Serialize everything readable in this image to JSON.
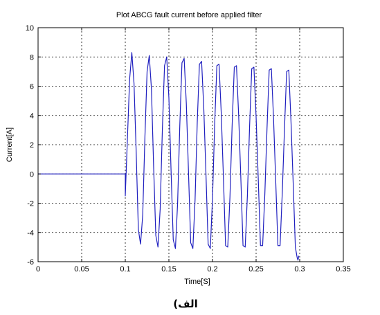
{
  "chart_data": {
    "type": "line",
    "title": "Plot ABCG fault current before applied filter",
    "xlabel": "Time[S]",
    "ylabel": "Current[A]",
    "xlim": [
      0,
      0.35
    ],
    "ylim": [
      -6,
      10
    ],
    "x_ticks": [
      0,
      0.05,
      0.1,
      0.15,
      0.2,
      0.25,
      0.3,
      0.35
    ],
    "x_tick_labels": [
      "0",
      "0.05",
      "0.1",
      "0.15",
      "0.2",
      "0.25",
      "0.3",
      "0.35"
    ],
    "y_ticks": [
      -6,
      -4,
      -2,
      0,
      2,
      4,
      6,
      8,
      10
    ],
    "y_tick_labels": [
      "-6",
      "-4",
      "-2",
      "0",
      "2",
      "4",
      "6",
      "8",
      "10"
    ],
    "grid": true,
    "series": [
      {
        "color": "#1f1fbf",
        "x": [
          0,
          0.1,
          0.1,
          0.105,
          0.1075,
          0.11,
          0.1125,
          0.115,
          0.1175,
          0.12,
          0.1225,
          0.125,
          0.1275,
          0.13,
          0.1325,
          0.135,
          0.1375,
          0.14,
          0.1425,
          0.145,
          0.1475,
          0.15,
          0.1525,
          0.155,
          0.1575,
          0.16,
          0.1625,
          0.165,
          0.1675,
          0.17,
          0.1725,
          0.175,
          0.1775,
          0.18,
          0.1825,
          0.185,
          0.1875,
          0.19,
          0.1925,
          0.195,
          0.1975,
          0.2,
          0.2025,
          0.205,
          0.2075,
          0.21,
          0.2125,
          0.215,
          0.2175,
          0.22,
          0.2225,
          0.225,
          0.2275,
          0.23,
          0.2325,
          0.235,
          0.2375,
          0.24,
          0.2425,
          0.245,
          0.2475,
          0.25,
          0.2525,
          0.255,
          0.2575,
          0.26,
          0.2625,
          0.265,
          0.2675,
          0.27,
          0.2725,
          0.275,
          0.2775,
          0.28,
          0.2825,
          0.285,
          0.2875,
          0.29,
          0.2925,
          0.295,
          0.297,
          0.298,
          0.299
        ],
        "y": [
          0,
          0,
          -1.5,
          6.5,
          8.3,
          6.2,
          1.5,
          -3.8,
          -4.8,
          -2.8,
          2.5,
          7.0,
          8.1,
          5.8,
          0.5,
          -4.2,
          -5.0,
          -2.4,
          3.0,
          7.4,
          8.0,
          5.2,
          0.2,
          -4.5,
          -5.1,
          -2.0,
          3.3,
          7.6,
          7.9,
          4.8,
          0.1,
          -4.7,
          -5.1,
          -1.8,
          3.5,
          7.5,
          7.7,
          4.5,
          0.0,
          -4.8,
          -5.1,
          -1.7,
          3.4,
          7.4,
          7.5,
          4.2,
          -0.2,
          -4.9,
          -5.0,
          -1.6,
          3.3,
          7.3,
          7.4,
          4.0,
          -0.3,
          -4.9,
          -5.0,
          -1.5,
          3.2,
          7.2,
          7.3,
          3.9,
          -0.4,
          -4.9,
          -4.9,
          -1.4,
          3.1,
          7.1,
          7.2,
          3.8,
          -0.5,
          -4.9,
          -4.9,
          -1.3,
          3.0,
          7.0,
          7.1,
          3.6,
          -0.6,
          -5.0,
          -5.7,
          -5.9,
          -5.6
        ]
      }
    ]
  },
  "caption": "الف)"
}
